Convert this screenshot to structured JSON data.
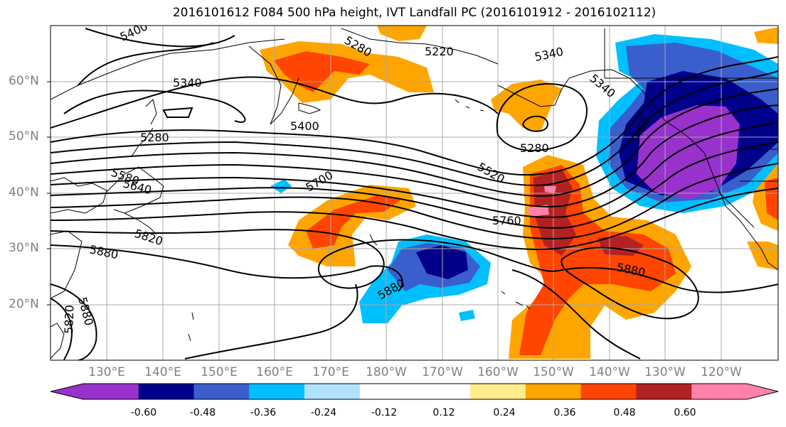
{
  "title": "2016101612 F084 500 hPa height, IVT Landfall PC (2016101912 - 2016102112)",
  "latitude_labels": [
    "60°N",
    "50°N",
    "40°N",
    "30°N",
    "20°N"
  ],
  "longitude_labels": [
    "130°E",
    "140°E",
    "150°E",
    "160°E",
    "170°E",
    "180°W",
    "170°W",
    "160°W",
    "150°W",
    "140°W",
    "130°W",
    "120°W"
  ],
  "contour_labels": {
    "c5400_nw": "5400",
    "c5280_n": "5280",
    "c5220": "5220",
    "c5340_ne": "5340",
    "c5340_nw": "5340",
    "c5340_e": "5340",
    "c5400_mid": "5400",
    "c5280_w": "5280",
    "c5280_gulf": "5280",
    "c5460": "5460",
    "c5520": "5520",
    "c5580_w": "5580",
    "c5640_w": "5640",
    "c5700": "5700",
    "c5760": "5760",
    "c5820_w": "5820",
    "c5880_w": "5880",
    "c5880_c": "5880",
    "c5880_e": "5880",
    "c5880_sw": "5880",
    "c5820_sw": "5820"
  },
  "colorbar": {
    "colors": [
      "#9932CC",
      "#00008B",
      "#3A5FCD",
      "#00BFFF",
      "#B0E2FF",
      "#FFFFFF",
      "#FFFFFF",
      "#FFEC8B",
      "#FFA500",
      "#FF4500",
      "#B22222",
      "#FF82AB"
    ],
    "ticks": [
      "-0.60",
      "-0.48",
      "-0.36",
      "-0.24",
      "-0.12",
      "0.12",
      "0.24",
      "0.36",
      "0.48",
      "0.60"
    ]
  }
}
